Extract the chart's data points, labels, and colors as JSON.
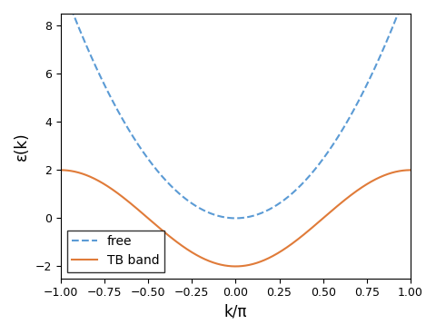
{
  "xlim": [
    -1.0,
    1.0
  ],
  "ylim": [
    -2.5,
    8.5
  ],
  "xlabel": "k/π",
  "ylabel": "ε(k)",
  "free_color": "#5b9bd5",
  "free_linestyle": "--",
  "free_label": "free",
  "tb_color": "#e07b39",
  "tb_linestyle": "-",
  "tb_label": "TB band",
  "tb_amplitude": 2.0,
  "n_points": 1000,
  "xticks": [
    -1.0,
    -0.75,
    -0.5,
    -0.25,
    0.0,
    0.25,
    0.5,
    0.75,
    1.0
  ],
  "yticks": [
    -2,
    0,
    2,
    4,
    6,
    8
  ],
  "legend_loc": "lower left",
  "legend_fontsize": 10,
  "axis_label_fontsize": 12,
  "tick_label_fontsize": 9,
  "figsize": [
    4.81,
    3.68
  ],
  "dpi": 100
}
